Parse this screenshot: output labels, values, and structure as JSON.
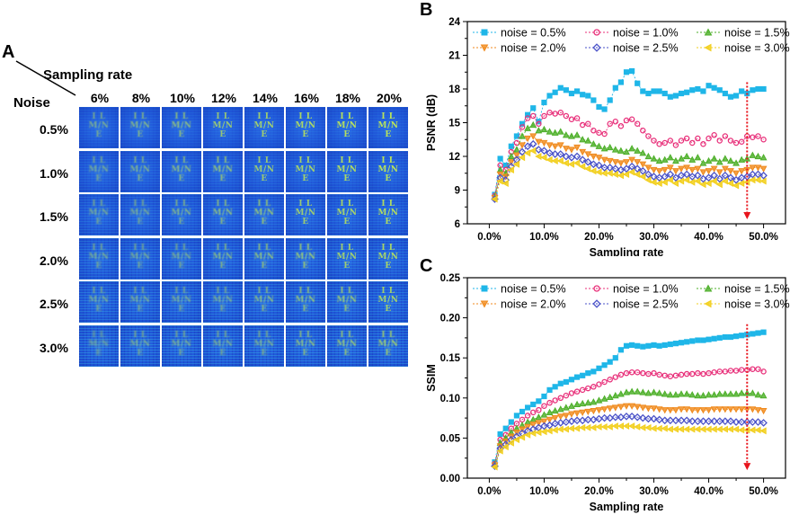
{
  "panels": {
    "a": "A",
    "b": "B",
    "c": "C"
  },
  "grid": {
    "corner_top": "Sampling rate",
    "corner_left": "Noise",
    "rates": [
      "6%",
      "8%",
      "10%",
      "12%",
      "14%",
      "16%",
      "18%",
      "20%"
    ],
    "noises": [
      "0.5%",
      "1.0%",
      "1.5%",
      "2.0%",
      "2.5%",
      "3.0%"
    ],
    "glyph_lines": [
      "I L",
      "M/N",
      "E"
    ]
  },
  "chart_data": [
    {
      "type": "line",
      "title": "",
      "xlabel": "Sampling rate",
      "ylabel": "PSNR (dB)",
      "xlim": [
        -0.04,
        0.54
      ],
      "ylim": [
        6,
        24
      ],
      "xticks": [
        0.0,
        0.1,
        0.2,
        0.3,
        0.4,
        0.5
      ],
      "xtick_labels": [
        "0.0%",
        "10.0%",
        "20.0%",
        "30.0%",
        "40.0%",
        "50.0%"
      ],
      "yticks": [
        6,
        9,
        12,
        15,
        18,
        21,
        24
      ],
      "ytick_labels": [
        "6",
        "9",
        "12",
        "15",
        "18",
        "21",
        "24"
      ],
      "legend_position": "top",
      "annotation": "red dotted arrow near sampling rate 47%",
      "arrow": {
        "x": 0.47,
        "y_from": 18.6,
        "y_to": 6.4
      },
      "x": [
        0.01,
        0.02,
        0.03,
        0.04,
        0.05,
        0.06,
        0.07,
        0.08,
        0.09,
        0.1,
        0.11,
        0.12,
        0.13,
        0.14,
        0.15,
        0.16,
        0.17,
        0.18,
        0.19,
        0.2,
        0.21,
        0.22,
        0.23,
        0.24,
        0.25,
        0.26,
        0.27,
        0.28,
        0.29,
        0.3,
        0.31,
        0.32,
        0.33,
        0.34,
        0.35,
        0.36,
        0.37,
        0.38,
        0.39,
        0.4,
        0.41,
        0.42,
        0.43,
        0.44,
        0.45,
        0.46,
        0.47,
        0.48,
        0.49,
        0.5
      ],
      "series": [
        {
          "name": "noise = 0.5%",
          "color": "#1fb6e8",
          "marker": "square",
          "values": [
            8.6,
            11.8,
            11.2,
            12.9,
            13.8,
            14.9,
            15.7,
            16.3,
            15.1,
            16.8,
            17.4,
            17.7,
            18.1,
            17.9,
            17.6,
            17.8,
            17.5,
            17.4,
            17.0,
            16.4,
            16.2,
            17.0,
            18.1,
            18.6,
            19.5,
            19.6,
            18.5,
            17.8,
            17.6,
            17.8,
            17.8,
            17.6,
            17.3,
            17.4,
            17.6,
            17.7,
            17.9,
            18.0,
            17.8,
            18.3,
            18.1,
            17.9,
            17.6,
            17.3,
            17.4,
            17.8,
            17.6,
            17.9,
            18.0,
            18.0
          ]
        },
        {
          "name": "noise = 1.0%",
          "color": "#e8307a",
          "marker": "circle",
          "values": [
            8.5,
            11.2,
            10.8,
            12.4,
            13.2,
            14.6,
            15.4,
            15.6,
            14.9,
            15.6,
            15.9,
            15.8,
            15.9,
            15.6,
            15.3,
            15.4,
            14.8,
            14.9,
            14.3,
            14.1,
            14.0,
            14.9,
            15.1,
            14.7,
            15.2,
            15.3,
            14.9,
            14.3,
            13.8,
            13.4,
            13.1,
            13.2,
            13.4,
            13.0,
            13.4,
            13.6,
            13.2,
            13.6,
            13.1,
            13.6,
            13.9,
            13.4,
            13.8,
            13.4,
            13.2,
            13.3,
            13.8,
            13.7,
            13.8,
            13.5
          ]
        },
        {
          "name": "noise = 1.5%",
          "color": "#4caf28",
          "marker": "triangle-up",
          "values": [
            8.4,
            10.8,
            10.5,
            12.0,
            12.6,
            13.8,
            14.5,
            14.8,
            14.3,
            14.4,
            14.2,
            14.1,
            14.2,
            13.9,
            13.8,
            13.9,
            13.5,
            13.4,
            13.1,
            12.9,
            12.7,
            12.8,
            12.6,
            12.5,
            12.4,
            12.7,
            12.5,
            12.3,
            12.0,
            11.8,
            11.6,
            11.7,
            11.9,
            11.6,
            11.8,
            12.0,
            11.7,
            11.9,
            11.4,
            11.6,
            11.8,
            11.5,
            11.8,
            11.6,
            11.4,
            11.7,
            11.8,
            12.1,
            12.0,
            11.9
          ]
        },
        {
          "name": "noise = 2.0%",
          "color": "#f08a1c",
          "marker": "triangle-down",
          "values": [
            8.3,
            10.4,
            10.2,
            11.5,
            12.1,
            13.0,
            13.6,
            13.8,
            13.3,
            13.2,
            13.0,
            12.9,
            13.0,
            12.7,
            12.6,
            12.8,
            12.4,
            12.2,
            12.0,
            11.9,
            11.7,
            11.6,
            11.5,
            11.4,
            11.5,
            11.7,
            11.5,
            11.3,
            11.0,
            10.8,
            10.7,
            10.8,
            11.0,
            10.7,
            10.9,
            11.0,
            10.8,
            10.9,
            10.6,
            10.7,
            10.9,
            10.6,
            10.9,
            10.7,
            10.5,
            10.7,
            10.8,
            11.0,
            11.0,
            10.9
          ]
        },
        {
          "name": "noise = 2.5%",
          "color": "#4a52c8",
          "marker": "diamond",
          "values": [
            8.2,
            10.1,
            9.9,
            11.1,
            11.7,
            12.4,
            12.9,
            13.1,
            12.6,
            12.5,
            12.3,
            12.2,
            12.2,
            12.0,
            11.9,
            12.0,
            11.7,
            11.5,
            11.3,
            11.2,
            11.0,
            11.0,
            10.9,
            10.8,
            10.9,
            11.1,
            10.9,
            10.7,
            10.4,
            10.2,
            10.1,
            10.2,
            10.4,
            10.1,
            10.3,
            10.4,
            10.2,
            10.3,
            10.0,
            10.1,
            10.3,
            10.0,
            10.3,
            10.1,
            9.9,
            10.1,
            10.2,
            10.4,
            10.4,
            10.3
          ]
        },
        {
          "name": "noise = 3.0%",
          "color": "#f2cf1c",
          "marker": "triangle-left",
          "values": [
            8.2,
            9.8,
            9.6,
            10.8,
            11.3,
            11.9,
            12.3,
            12.5,
            12.0,
            11.9,
            11.7,
            11.6,
            11.6,
            11.4,
            11.3,
            11.4,
            11.1,
            10.9,
            10.7,
            10.6,
            10.5,
            10.5,
            10.4,
            10.3,
            10.4,
            10.6,
            10.4,
            10.2,
            9.9,
            9.7,
            9.6,
            9.7,
            9.9,
            9.6,
            9.8,
            9.9,
            9.7,
            9.8,
            9.5,
            9.6,
            9.8,
            9.5,
            9.8,
            9.6,
            9.4,
            9.6,
            9.7,
            9.9,
            9.9,
            9.8
          ]
        }
      ]
    },
    {
      "type": "line",
      "title": "",
      "xlabel": "Sampling rate",
      "ylabel": "SSIM",
      "xlim": [
        -0.04,
        0.54
      ],
      "ylim": [
        0.0,
        0.25
      ],
      "xticks": [
        0.0,
        0.1,
        0.2,
        0.3,
        0.4,
        0.5
      ],
      "xtick_labels": [
        "0.0%",
        "10.0%",
        "20.0%",
        "30.0%",
        "40.0%",
        "50.0%"
      ],
      "yticks": [
        0.0,
        0.05,
        0.1,
        0.15,
        0.2,
        0.25
      ],
      "ytick_labels": [
        "0.00",
        "0.05",
        "0.10",
        "0.15",
        "0.20",
        "0.25"
      ],
      "legend_position": "top",
      "annotation": "red dotted arrow near sampling rate 47%",
      "arrow": {
        "x": 0.47,
        "y_from": 0.192,
        "y_to": 0.01
      },
      "x": [
        0.01,
        0.02,
        0.03,
        0.04,
        0.05,
        0.06,
        0.07,
        0.08,
        0.09,
        0.1,
        0.11,
        0.12,
        0.13,
        0.14,
        0.15,
        0.16,
        0.17,
        0.18,
        0.19,
        0.2,
        0.21,
        0.22,
        0.23,
        0.24,
        0.25,
        0.26,
        0.27,
        0.28,
        0.29,
        0.3,
        0.31,
        0.32,
        0.33,
        0.34,
        0.35,
        0.36,
        0.37,
        0.38,
        0.39,
        0.4,
        0.41,
        0.42,
        0.43,
        0.44,
        0.45,
        0.46,
        0.47,
        0.48,
        0.49,
        0.5
      ],
      "series": [
        {
          "name": "noise = 0.5%",
          "color": "#1fb6e8",
          "marker": "square",
          "values": [
            0.02,
            0.055,
            0.062,
            0.07,
            0.078,
            0.083,
            0.088,
            0.092,
            0.096,
            0.102,
            0.11,
            0.114,
            0.118,
            0.12,
            0.123,
            0.126,
            0.128,
            0.131,
            0.133,
            0.137,
            0.141,
            0.145,
            0.15,
            0.16,
            0.165,
            0.166,
            0.165,
            0.164,
            0.165,
            0.166,
            0.165,
            0.166,
            0.167,
            0.168,
            0.169,
            0.17,
            0.171,
            0.172,
            0.172,
            0.173,
            0.174,
            0.175,
            0.176,
            0.176,
            0.177,
            0.178,
            0.179,
            0.18,
            0.181,
            0.182
          ]
        },
        {
          "name": "noise = 1.0%",
          "color": "#e8307a",
          "marker": "circle",
          "values": [
            0.018,
            0.048,
            0.054,
            0.062,
            0.068,
            0.073,
            0.078,
            0.082,
            0.085,
            0.09,
            0.094,
            0.097,
            0.1,
            0.103,
            0.106,
            0.108,
            0.11,
            0.112,
            0.114,
            0.117,
            0.12,
            0.123,
            0.126,
            0.129,
            0.131,
            0.132,
            0.132,
            0.131,
            0.13,
            0.131,
            0.129,
            0.128,
            0.127,
            0.128,
            0.129,
            0.13,
            0.13,
            0.131,
            0.13,
            0.131,
            0.132,
            0.133,
            0.133,
            0.134,
            0.134,
            0.135,
            0.135,
            0.136,
            0.136,
            0.133
          ]
        },
        {
          "name": "noise = 1.5%",
          "color": "#4caf28",
          "marker": "triangle-up",
          "values": [
            0.017,
            0.044,
            0.05,
            0.057,
            0.062,
            0.066,
            0.07,
            0.073,
            0.076,
            0.079,
            0.082,
            0.084,
            0.086,
            0.088,
            0.09,
            0.092,
            0.093,
            0.094,
            0.095,
            0.097,
            0.099,
            0.101,
            0.103,
            0.105,
            0.107,
            0.108,
            0.108,
            0.107,
            0.106,
            0.107,
            0.106,
            0.105,
            0.104,
            0.104,
            0.105,
            0.105,
            0.104,
            0.103,
            0.103,
            0.104,
            0.104,
            0.105,
            0.105,
            0.105,
            0.105,
            0.106,
            0.106,
            0.106,
            0.104,
            0.103
          ]
        },
        {
          "name": "noise = 2.0%",
          "color": "#f08a1c",
          "marker": "triangle-down",
          "values": [
            0.016,
            0.04,
            0.046,
            0.052,
            0.057,
            0.061,
            0.064,
            0.067,
            0.069,
            0.071,
            0.073,
            0.075,
            0.077,
            0.078,
            0.08,
            0.081,
            0.082,
            0.083,
            0.084,
            0.085,
            0.086,
            0.087,
            0.088,
            0.089,
            0.09,
            0.09,
            0.089,
            0.088,
            0.087,
            0.087,
            0.086,
            0.085,
            0.085,
            0.085,
            0.086,
            0.086,
            0.085,
            0.085,
            0.085,
            0.085,
            0.086,
            0.086,
            0.086,
            0.086,
            0.086,
            0.086,
            0.086,
            0.086,
            0.085,
            0.084
          ]
        },
        {
          "name": "noise = 2.5%",
          "color": "#4a52c8",
          "marker": "diamond",
          "values": [
            0.015,
            0.037,
            0.042,
            0.048,
            0.052,
            0.056,
            0.059,
            0.061,
            0.063,
            0.065,
            0.066,
            0.068,
            0.069,
            0.07,
            0.071,
            0.072,
            0.072,
            0.073,
            0.073,
            0.074,
            0.075,
            0.075,
            0.076,
            0.076,
            0.077,
            0.077,
            0.076,
            0.075,
            0.074,
            0.074,
            0.073,
            0.072,
            0.072,
            0.072,
            0.072,
            0.072,
            0.071,
            0.071,
            0.071,
            0.071,
            0.071,
            0.071,
            0.071,
            0.071,
            0.07,
            0.07,
            0.07,
            0.07,
            0.07,
            0.069
          ]
        },
        {
          "name": "noise = 3.0%",
          "color": "#f2cf1c",
          "marker": "triangle-left",
          "values": [
            0.014,
            0.034,
            0.039,
            0.044,
            0.048,
            0.051,
            0.054,
            0.056,
            0.057,
            0.058,
            0.059,
            0.06,
            0.061,
            0.061,
            0.062,
            0.062,
            0.063,
            0.063,
            0.063,
            0.064,
            0.064,
            0.064,
            0.065,
            0.065,
            0.065,
            0.065,
            0.064,
            0.063,
            0.063,
            0.062,
            0.062,
            0.062,
            0.061,
            0.061,
            0.061,
            0.061,
            0.061,
            0.061,
            0.061,
            0.061,
            0.061,
            0.061,
            0.061,
            0.061,
            0.061,
            0.06,
            0.06,
            0.06,
            0.06,
            0.059
          ]
        }
      ]
    }
  ]
}
